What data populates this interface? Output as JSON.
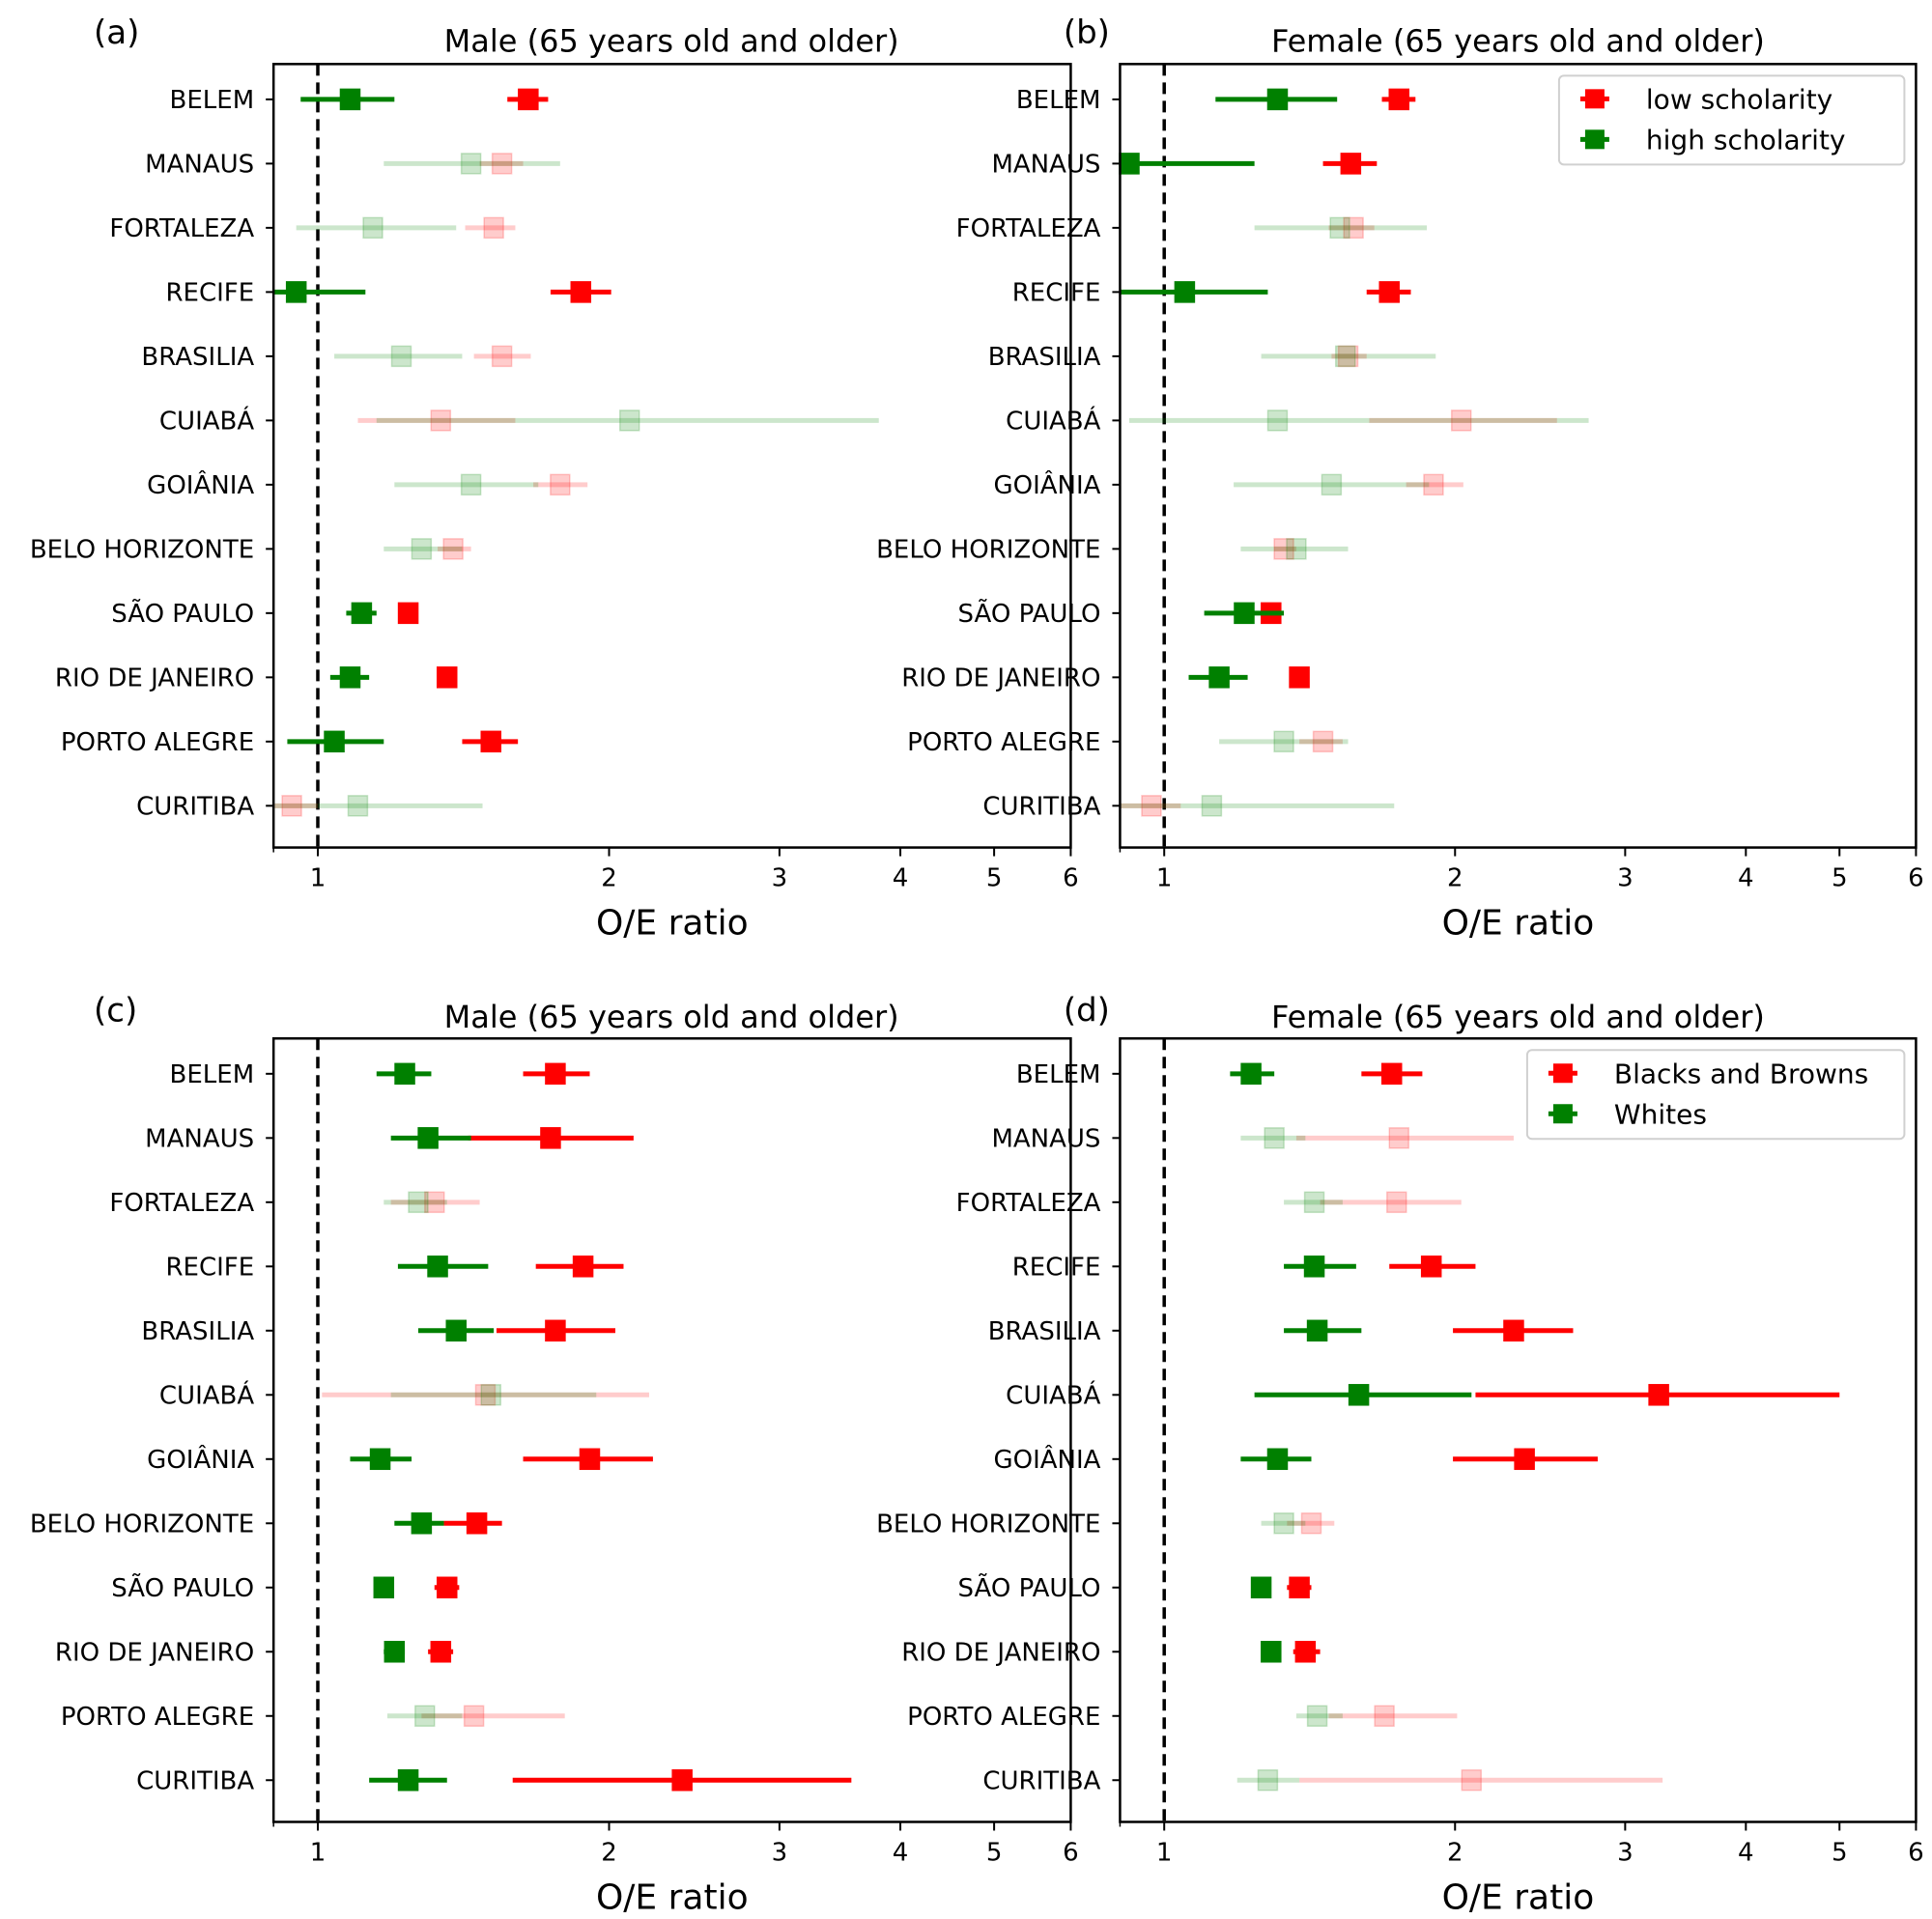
{
  "figure": {
    "panels": [
      "a",
      "b",
      "c",
      "d"
    ]
  },
  "chart_data": [
    {
      "id": "a",
      "type": "forest",
      "letter": "(a)",
      "title": "Male (65 years old and older)",
      "xlabel": "O/E ratio",
      "xscale": "log",
      "xlim": [
        0.9,
        6
      ],
      "xticks": [
        1,
        2,
        3,
        4,
        5,
        6
      ],
      "xtick_labels": [
        "1",
        "2",
        "3",
        "4",
        "5",
        "6"
      ],
      "reference_line": 1,
      "legend": null,
      "categories": [
        "BELEM",
        "MANAUS",
        "FORTALEZA",
        "RECIFE",
        "BRASILIA",
        "CUIABÁ",
        "GOIÂNIA",
        "BELO HORIZONTE",
        "SÃO PAULO",
        "RIO DE JANEIRO",
        "PORTO ALEGRE",
        "CURITIBA"
      ],
      "series": [
        {
          "name": "low scholarity",
          "color": "#ff0000",
          "points": [
            {
              "est": 1.65,
              "lo": 1.57,
              "hi": 1.73,
              "significant": true
            },
            {
              "est": 1.55,
              "lo": 1.47,
              "hi": 1.63,
              "significant": false
            },
            {
              "est": 1.52,
              "lo": 1.42,
              "hi": 1.6,
              "significant": false
            },
            {
              "est": 1.87,
              "lo": 1.74,
              "hi": 2.01,
              "significant": true
            },
            {
              "est": 1.55,
              "lo": 1.45,
              "hi": 1.66,
              "significant": false
            },
            {
              "est": 1.34,
              "lo": 1.1,
              "hi": 1.6,
              "significant": false
            },
            {
              "est": 1.78,
              "lo": 1.67,
              "hi": 1.9,
              "significant": false
            },
            {
              "est": 1.38,
              "lo": 1.33,
              "hi": 1.44,
              "significant": false
            },
            {
              "est": 1.24,
              "lo": 1.22,
              "hi": 1.26,
              "significant": true
            },
            {
              "est": 1.36,
              "lo": 1.33,
              "hi": 1.39,
              "significant": true
            },
            {
              "est": 1.51,
              "lo": 1.41,
              "hi": 1.61,
              "significant": true
            },
            {
              "est": 0.94,
              "lo": 0.9,
              "hi": 1.0,
              "significant": false
            }
          ]
        },
        {
          "name": "high scholarity",
          "color": "#008000",
          "points": [
            {
              "est": 1.08,
              "lo": 0.96,
              "hi": 1.2,
              "significant": true
            },
            {
              "est": 1.44,
              "lo": 1.17,
              "hi": 1.78,
              "significant": false
            },
            {
              "est": 1.14,
              "lo": 0.95,
              "hi": 1.39,
              "significant": false
            },
            {
              "est": 0.95,
              "lo": 0.9,
              "hi": 1.12,
              "significant": true
            },
            {
              "est": 1.22,
              "lo": 1.04,
              "hi": 1.41,
              "significant": false
            },
            {
              "est": 2.1,
              "lo": 1.15,
              "hi": 3.8,
              "significant": false
            },
            {
              "est": 1.44,
              "lo": 1.2,
              "hi": 1.69,
              "significant": false
            },
            {
              "est": 1.28,
              "lo": 1.17,
              "hi": 1.41,
              "significant": false
            },
            {
              "est": 1.11,
              "lo": 1.07,
              "hi": 1.15,
              "significant": true
            },
            {
              "est": 1.08,
              "lo": 1.03,
              "hi": 1.13,
              "significant": true
            },
            {
              "est": 1.04,
              "lo": 0.93,
              "hi": 1.17,
              "significant": true
            },
            {
              "est": 1.1,
              "lo": 0.9,
              "hi": 1.48,
              "significant": false
            }
          ]
        }
      ]
    },
    {
      "id": "b",
      "type": "forest",
      "letter": "(b)",
      "title": "Female (65 years old and older)",
      "xlabel": "O/E ratio",
      "xscale": "log",
      "xlim": [
        0.9,
        6
      ],
      "xticks": [
        1,
        2,
        3,
        4,
        5,
        6
      ],
      "xtick_labels": [
        "1",
        "2",
        "3",
        "4",
        "5",
        "6"
      ],
      "reference_line": 1,
      "legend": {
        "position": "upper right",
        "entries": [
          "low scholarity",
          "high scholarity"
        ]
      },
      "categories": [
        "BELEM",
        "MANAUS",
        "FORTALEZA",
        "RECIFE",
        "BRASILIA",
        "CUIABÁ",
        "GOIÂNIA",
        "BELO HORIZONTE",
        "SÃO PAULO",
        "RIO DE JANEIRO",
        "PORTO ALEGRE",
        "CURITIBA"
      ],
      "series": [
        {
          "name": "low scholarity",
          "color": "#ff0000",
          "points": [
            {
              "est": 1.75,
              "lo": 1.68,
              "hi": 1.82,
              "significant": true
            },
            {
              "est": 1.56,
              "lo": 1.46,
              "hi": 1.66,
              "significant": true
            },
            {
              "est": 1.57,
              "lo": 1.48,
              "hi": 1.65,
              "significant": false
            },
            {
              "est": 1.71,
              "lo": 1.62,
              "hi": 1.8,
              "significant": true
            },
            {
              "est": 1.55,
              "lo": 1.49,
              "hi": 1.62,
              "significant": false
            },
            {
              "est": 2.03,
              "lo": 1.63,
              "hi": 2.55,
              "significant": false
            },
            {
              "est": 1.9,
              "lo": 1.78,
              "hi": 2.04,
              "significant": false
            },
            {
              "est": 1.33,
              "lo": 1.3,
              "hi": 1.37,
              "significant": false
            },
            {
              "est": 1.29,
              "lo": 1.27,
              "hi": 1.31,
              "significant": true
            },
            {
              "est": 1.38,
              "lo": 1.35,
              "hi": 1.41,
              "significant": true
            },
            {
              "est": 1.46,
              "lo": 1.38,
              "hi": 1.53,
              "significant": false
            },
            {
              "est": 0.97,
              "lo": 0.9,
              "hi": 1.04,
              "significant": false
            }
          ]
        },
        {
          "name": "high scholarity",
          "color": "#008000",
          "points": [
            {
              "est": 1.31,
              "lo": 1.13,
              "hi": 1.51,
              "significant": true
            },
            {
              "est": 0.92,
              "lo": 0.9,
              "hi": 1.24,
              "significant": true
            },
            {
              "est": 1.52,
              "lo": 1.24,
              "hi": 1.87,
              "significant": false
            },
            {
              "est": 1.05,
              "lo": 0.9,
              "hi": 1.28,
              "significant": true
            },
            {
              "est": 1.54,
              "lo": 1.26,
              "hi": 1.91,
              "significant": false
            },
            {
              "est": 1.31,
              "lo": 0.92,
              "hi": 2.75,
              "significant": false
            },
            {
              "est": 1.49,
              "lo": 1.18,
              "hi": 1.88,
              "significant": false
            },
            {
              "est": 1.37,
              "lo": 1.2,
              "hi": 1.55,
              "significant": false
            },
            {
              "est": 1.21,
              "lo": 1.1,
              "hi": 1.33,
              "significant": true
            },
            {
              "est": 1.14,
              "lo": 1.06,
              "hi": 1.22,
              "significant": true
            },
            {
              "est": 1.33,
              "lo": 1.14,
              "hi": 1.55,
              "significant": false
            },
            {
              "est": 1.12,
              "lo": 0.9,
              "hi": 1.73,
              "significant": false
            }
          ]
        }
      ]
    },
    {
      "id": "c",
      "type": "forest",
      "letter": "(c)",
      "title": "Male (65 years old and older)",
      "xlabel": "O/E ratio",
      "xscale": "log",
      "xlim": [
        0.9,
        6
      ],
      "xticks": [
        1,
        2,
        3,
        4,
        5,
        6
      ],
      "xtick_labels": [
        "1",
        "2",
        "3",
        "4",
        "5",
        "6"
      ],
      "reference_line": 1,
      "legend": null,
      "categories": [
        "BELEM",
        "MANAUS",
        "FORTALEZA",
        "RECIFE",
        "BRASILIA",
        "CUIABÁ",
        "GOIÂNIA",
        "BELO HORIZONTE",
        "SÃO PAULO",
        "RIO DE JANEIRO",
        "PORTO ALEGRE",
        "CURITIBA"
      ],
      "series": [
        {
          "name": "Blacks and Browns",
          "color": "#ff0000",
          "points": [
            {
              "est": 1.76,
              "lo": 1.63,
              "hi": 1.91,
              "significant": true
            },
            {
              "est": 1.74,
              "lo": 1.43,
              "hi": 2.12,
              "significant": true
            },
            {
              "est": 1.32,
              "lo": 1.19,
              "hi": 1.47,
              "significant": false
            },
            {
              "est": 1.88,
              "lo": 1.68,
              "hi": 2.07,
              "significant": true
            },
            {
              "est": 1.76,
              "lo": 1.53,
              "hi": 2.03,
              "significant": true
            },
            {
              "est": 1.49,
              "lo": 1.01,
              "hi": 2.2,
              "significant": false
            },
            {
              "est": 1.91,
              "lo": 1.63,
              "hi": 2.22,
              "significant": true
            },
            {
              "est": 1.46,
              "lo": 1.35,
              "hi": 1.55,
              "significant": true
            },
            {
              "est": 1.36,
              "lo": 1.32,
              "hi": 1.4,
              "significant": true
            },
            {
              "est": 1.34,
              "lo": 1.3,
              "hi": 1.38,
              "significant": true
            },
            {
              "est": 1.45,
              "lo": 1.28,
              "hi": 1.8,
              "significant": false
            },
            {
              "est": 2.38,
              "lo": 1.59,
              "hi": 3.56,
              "significant": true
            }
          ]
        },
        {
          "name": "Whites",
          "color": "#008000",
          "points": [
            {
              "est": 1.23,
              "lo": 1.15,
              "hi": 1.31,
              "significant": true
            },
            {
              "est": 1.3,
              "lo": 1.19,
              "hi": 1.44,
              "significant": true
            },
            {
              "est": 1.27,
              "lo": 1.17,
              "hi": 1.36,
              "significant": false
            },
            {
              "est": 1.33,
              "lo": 1.21,
              "hi": 1.5,
              "significant": true
            },
            {
              "est": 1.39,
              "lo": 1.27,
              "hi": 1.52,
              "significant": true
            },
            {
              "est": 1.51,
              "lo": 1.19,
              "hi": 1.94,
              "significant": false
            },
            {
              "est": 1.16,
              "lo": 1.08,
              "hi": 1.25,
              "significant": true
            },
            {
              "est": 1.28,
              "lo": 1.2,
              "hi": 1.35,
              "significant": true
            },
            {
              "est": 1.17,
              "lo": 1.15,
              "hi": 1.19,
              "significant": true
            },
            {
              "est": 1.2,
              "lo": 1.17,
              "hi": 1.23,
              "significant": true
            },
            {
              "est": 1.29,
              "lo": 1.18,
              "hi": 1.41,
              "significant": false
            },
            {
              "est": 1.24,
              "lo": 1.13,
              "hi": 1.36,
              "significant": true
            }
          ]
        }
      ]
    },
    {
      "id": "d",
      "type": "forest",
      "letter": "(d)",
      "title": "Female (65 years old and older)",
      "xlabel": "O/E ratio",
      "xscale": "log",
      "xlim": [
        0.9,
        6
      ],
      "xticks": [
        1,
        2,
        3,
        4,
        5,
        6
      ],
      "xtick_labels": [
        "1",
        "2",
        "3",
        "4",
        "5",
        "6"
      ],
      "reference_line": 1,
      "legend": {
        "position": "upper right",
        "entries": [
          "Blacks and Browns",
          "Whites"
        ]
      },
      "categories": [
        "BELEM",
        "MANAUS",
        "FORTALEZA",
        "RECIFE",
        "BRASILIA",
        "CUIABÁ",
        "GOIÂNIA",
        "BELO HORIZONTE",
        "SÃO PAULO",
        "RIO DE JANEIRO",
        "PORTO ALEGRE",
        "CURITIBA"
      ],
      "series": [
        {
          "name": "Blacks and Browns",
          "color": "#ff0000",
          "points": [
            {
              "est": 1.72,
              "lo": 1.6,
              "hi": 1.85,
              "significant": true
            },
            {
              "est": 1.75,
              "lo": 1.37,
              "hi": 2.3,
              "significant": false
            },
            {
              "est": 1.74,
              "lo": 1.45,
              "hi": 2.03,
              "significant": false
            },
            {
              "est": 1.89,
              "lo": 1.71,
              "hi": 2.1,
              "significant": true
            },
            {
              "est": 2.3,
              "lo": 1.99,
              "hi": 2.65,
              "significant": true
            },
            {
              "est": 3.25,
              "lo": 2.1,
              "hi": 5.0,
              "significant": true
            },
            {
              "est": 2.36,
              "lo": 1.99,
              "hi": 2.81,
              "significant": true
            },
            {
              "est": 1.42,
              "lo": 1.34,
              "hi": 1.5,
              "significant": false
            },
            {
              "est": 1.38,
              "lo": 1.34,
              "hi": 1.42,
              "significant": true
            },
            {
              "est": 1.4,
              "lo": 1.36,
              "hi": 1.45,
              "significant": true
            },
            {
              "est": 1.69,
              "lo": 1.48,
              "hi": 2.01,
              "significant": false
            },
            {
              "est": 2.08,
              "lo": 1.38,
              "hi": 3.28,
              "significant": false
            }
          ]
        },
        {
          "name": "Whites",
          "color": "#008000",
          "points": [
            {
              "est": 1.23,
              "lo": 1.17,
              "hi": 1.3,
              "significant": true
            },
            {
              "est": 1.3,
              "lo": 1.2,
              "hi": 1.4,
              "significant": false
            },
            {
              "est": 1.43,
              "lo": 1.33,
              "hi": 1.53,
              "significant": false
            },
            {
              "est": 1.43,
              "lo": 1.33,
              "hi": 1.58,
              "significant": true
            },
            {
              "est": 1.44,
              "lo": 1.33,
              "hi": 1.6,
              "significant": true
            },
            {
              "est": 1.59,
              "lo": 1.24,
              "hi": 2.08,
              "significant": true
            },
            {
              "est": 1.31,
              "lo": 1.2,
              "hi": 1.42,
              "significant": true
            },
            {
              "est": 1.33,
              "lo": 1.26,
              "hi": 1.4,
              "significant": false
            },
            {
              "est": 1.26,
              "lo": 1.24,
              "hi": 1.28,
              "significant": true
            },
            {
              "est": 1.29,
              "lo": 1.26,
              "hi": 1.32,
              "significant": true
            },
            {
              "est": 1.44,
              "lo": 1.37,
              "hi": 1.53,
              "significant": false
            },
            {
              "est": 1.28,
              "lo": 1.19,
              "hi": 1.38,
              "significant": false
            }
          ]
        }
      ]
    }
  ]
}
